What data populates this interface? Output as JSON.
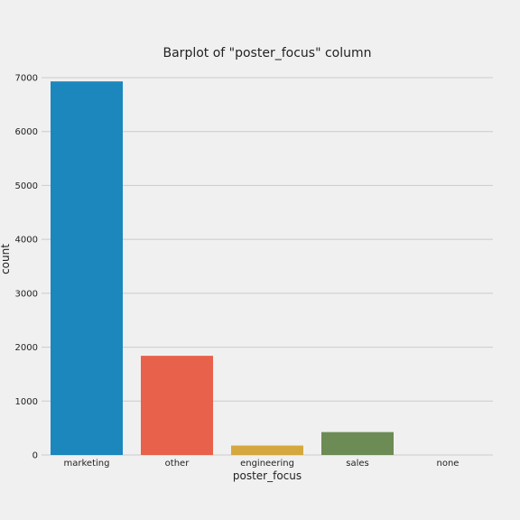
{
  "chart_data": {
    "type": "bar",
    "title": "Barplot of \"poster_focus\" column",
    "xlabel": "poster_focus",
    "ylabel": "count",
    "categories": [
      "marketing",
      "other",
      "engineering",
      "sales",
      "none"
    ],
    "values": [
      6930,
      1840,
      175,
      425,
      0
    ],
    "colors": [
      "#1b87bd",
      "#e8614a",
      "#d5a83f",
      "#6c8b55",
      "#8b6db3"
    ],
    "ylim": [
      0,
      7000
    ],
    "yticks": [
      0,
      1000,
      2000,
      3000,
      4000,
      5000,
      6000,
      7000
    ],
    "grid": true,
    "legend": "none",
    "background": "#f0f0f0",
    "grid_color": "#cbcbcb"
  }
}
